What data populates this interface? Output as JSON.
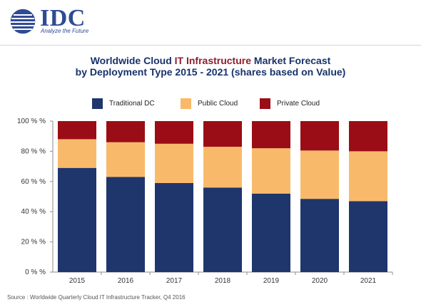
{
  "header": {
    "brand": "IDC",
    "tagline": "Analyze the Future"
  },
  "title": {
    "line1_prefix": "Worldwide Cloud ",
    "line1_highlight": "IT Infrastructure",
    "line1_suffix": " Market Forecast",
    "line2": "by Deployment Type  2015 - 2021 (shares based on Value)"
  },
  "source": "Source : Worldwide Quarterly Cloud IT Infrastructure Tracker, Q4 2016",
  "colors": {
    "traditional": "#1f366c",
    "public": "#f8ba6a",
    "private": "#9b0d16",
    "axis": "#8e8e8e",
    "text": "#333333"
  },
  "chart_data": {
    "type": "bar",
    "stacked": true,
    "title": "Worldwide Cloud IT Infrastructure Market Forecast by Deployment Type  2015 - 2021 (shares based on Value)",
    "xlabel": "",
    "ylabel": "",
    "categories": [
      "2015",
      "2016",
      "2017",
      "2018",
      "2019",
      "2020",
      "2021"
    ],
    "series": [
      {
        "name": "Traditional DC",
        "values": [
          69,
          63,
          59,
          56,
          52,
          48.5,
          47
        ],
        "color": "#1f366c"
      },
      {
        "name": "Public Cloud",
        "values": [
          19,
          23,
          26,
          27,
          30,
          32,
          33
        ],
        "color": "#f8ba6a"
      },
      {
        "name": "Private Cloud",
        "values": [
          12,
          14,
          15,
          17,
          18,
          19.5,
          20
        ],
        "color": "#9b0d16"
      }
    ],
    "ylim": [
      0,
      100
    ],
    "yticks": [
      0,
      20,
      40,
      60,
      80,
      100
    ],
    "ytick_labels": [
      "0 % %",
      "20 % %",
      "40 % %",
      "60 % %",
      "80 % %",
      "100 % %"
    ],
    "legend_position": "top",
    "grid": false
  }
}
